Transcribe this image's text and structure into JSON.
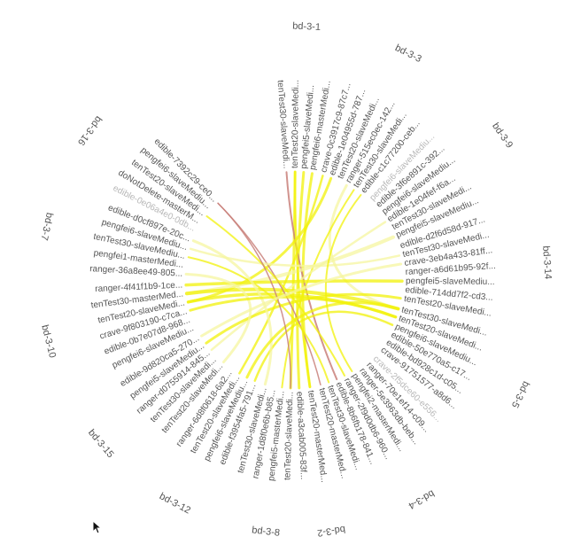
{
  "diagram": {
    "type": "hierarchical-edge-bundling",
    "colors": {
      "label": "#555555",
      "faded_label": "#b8b8b8",
      "link": "#f2f20a",
      "link_light": "#f6f6a0",
      "link_highlight": "#c9807a"
    },
    "groups": [
      {
        "name": "bd-3-1",
        "leaves": [
          "tenTest30-slaveMedi...",
          "tenTest20-slaveMedi...",
          "pengfei5-slaveMedi...",
          "pengfei6-masterMedi..."
        ]
      },
      {
        "name": "bd-3-3",
        "leaves": [
          "crave-0c3917c9-87c7...",
          "edible-1e04955d-787...",
          "tenTest20-slaveMedi...",
          "ranger-515ec0ec-142...",
          "tenTest30-slaveMedi...",
          "edible-c1c77200-ceb..."
        ]
      },
      {
        "name": "bd-3-9",
        "leaves": [
          "pengfei6-slaveMediu...",
          "edible-3f6e891c-392...",
          "pengfei6-slaveMediu...",
          "edible-1e04fef-f6a...",
          "tenTest30-slaveMedi...",
          "pengfei5-slaveMediu..."
        ]
      },
      {
        "name": "bd-3-14",
        "leaves": [
          "edible-d2f6d58d-917...",
          "tenTest30-slaveMedi...",
          "crave-3eb4a433-81ff...",
          "ranger-a6d61b95-92f...",
          "pengfei5-slaveMediu...",
          "edible-714dd7f2-cd3...",
          "tenTest20-slaveMedi..."
        ]
      },
      {
        "name": "bd-3-5",
        "leaves": [
          "tenTest30-slaveMedi...",
          "tenTest20-slaveMedi...",
          "pengfei6-slaveMediu...",
          "edible-50e770a5-c17...",
          "edible-bd928c1d-c05...",
          "crave-91751577-a8d6..."
        ]
      },
      {
        "name": "bd-3-4",
        "leaves": [
          "crave-2f5dce60-e556...",
          "ranger-70e1ef14-c09...",
          "ranger-5e3963db-beb...",
          "pengfei2-masterMedi...",
          "ranger-2f9d0db6-960...",
          "edible-8b6fb178-841...",
          "tenTest30-slaveMedi...",
          "tenTest20-masterMed..."
        ]
      },
      {
        "name": "bd-3-2",
        "leaves": [
          "tenTest20-masterMed..."
        ]
      },
      {
        "name": "bd-3-8",
        "leaves": [
          "edible-a3cab005-83f...",
          "tenTest20-slaveMedi...",
          "pengfei5-masterMedi...",
          "ranger-1d8f0e6b-b85...",
          "tenTest30-slaveMedi..."
        ]
      },
      {
        "name": "bd-3-12",
        "leaves": [
          "edible-f3954fa5-791...",
          "pengfei6-slaveMediu...",
          "tenTest20-slaveMedi...",
          "ranger-6d8f0618-6a2..."
        ]
      },
      {
        "name": "bd-3-15",
        "leaves": [
          "tenTest20-slaveMedi...",
          "tenTest30-slaveMedi...",
          "ranger-d0755914-845...",
          "pengfei5-slaveMediu...",
          "edible-9d820ca5-270..."
        ]
      },
      {
        "name": "bd-3-10",
        "leaves": [
          "pengfei6-slaveMediu...",
          "edible-0b7e07d8-968...",
          "crave-9f803190-c7ca...",
          "tenTest20-slaveMedi...",
          "tenTest30-masterMed...",
          "ranger-4f41f1b9-1ce..."
        ]
      },
      {
        "name": "bd-3-7",
        "leaves": [
          "ranger-36a8ee49-805...",
          "pengfei1-masterMedi...",
          "tenTest30-slaveMediu...",
          "pengfei6-slaveMediu...",
          "edible-d0cf897e-20c..."
        ]
      },
      {
        "name": "bd-3-16",
        "leaves": [
          "edible-0e06a4e0-0db...",
          "doNotDelete-masterM...",
          "tenTest20-slaveMedi...",
          "pengfei6-slaveMediu...",
          "edible-7392c29-ce0..."
        ]
      }
    ]
  }
}
